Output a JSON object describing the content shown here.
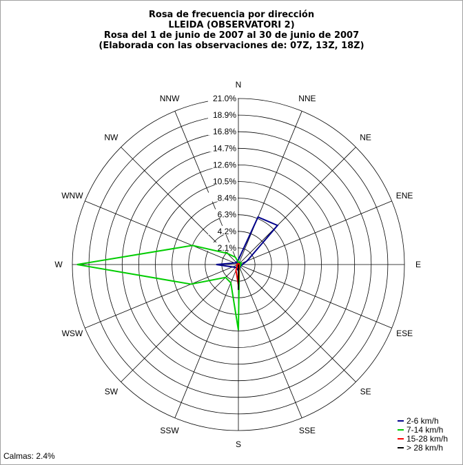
{
  "chart_data": {
    "type": "wind-rose",
    "title_lines": [
      "Rosa de frecuencia por dirección",
      "LLEIDA (OBSERVATORI 2)",
      "Rosa del 1 de junio de 2007 al 30 de junio de 2007",
      "(Elaborada con las observaciones de: 07Z, 13Z, 18Z)"
    ],
    "directions": [
      "N",
      "NNE",
      "NE",
      "ENE",
      "E",
      "ESE",
      "SE",
      "SSE",
      "S",
      "SSW",
      "SW",
      "WSW",
      "W",
      "WNW",
      "NW",
      "NNW"
    ],
    "ring_labels": [
      "2.1%",
      "4.2%",
      "6.3%",
      "8.4%",
      "10.5%",
      "12.6%",
      "14.7%",
      "16.8%",
      "18.9%",
      "21.0%"
    ],
    "rmax": 21.0,
    "series": [
      {
        "name": "2-6 km/h",
        "color": "#00008b",
        "values": [
          0.6,
          6.5,
          7.0,
          1.2,
          0.5,
          0.4,
          0.3,
          0.5,
          0.8,
          0.5,
          0.5,
          0.8,
          2.8,
          0.5,
          0.4,
          0.4
        ]
      },
      {
        "name": "7-14 km/h",
        "color": "#00cc00",
        "values": [
          0.3,
          0.3,
          0.4,
          0.4,
          0.3,
          0.3,
          0.3,
          0.3,
          8.3,
          2.5,
          2.3,
          6.5,
          20.4,
          6.3,
          2.0,
          1.0
        ]
      },
      {
        "name": "15-28 km/h",
        "color": "#ff0000",
        "values": [
          0.1,
          0.1,
          0.1,
          0.1,
          0.1,
          0.1,
          0.1,
          0.2,
          2.6,
          0.8,
          0.2,
          0.2,
          0.2,
          0.1,
          0.1,
          0.1
        ]
      },
      {
        "name": "> 28 km/h",
        "color": "#000000",
        "values": [
          0,
          0,
          0,
          0,
          0,
          0,
          0,
          0,
          3.2,
          0,
          0,
          0,
          0,
          0,
          0,
          0
        ]
      }
    ],
    "calms_text": "Calmas: 2.4%",
    "legend_position": "bottom-right",
    "grid": true
  }
}
